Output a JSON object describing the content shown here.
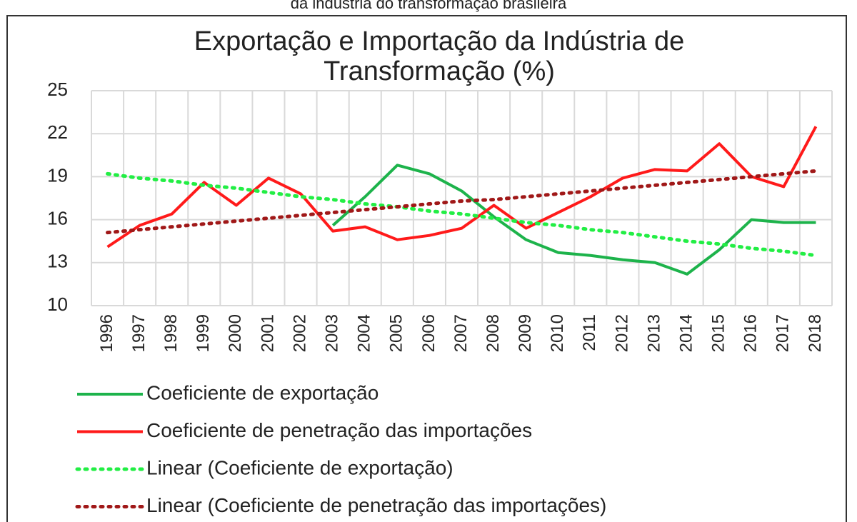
{
  "chart_data": {
    "type": "line",
    "caption": "da indústria do transformação brasileira",
    "title": [
      "Exportação e Importação da Indústria de",
      "Transformação (%)"
    ],
    "categories": [
      "1996",
      "1997",
      "1998",
      "1999",
      "2000",
      "2001",
      "2002",
      "2003",
      "2004",
      "2005",
      "2006",
      "2007",
      "2008",
      "2009",
      "2010",
      "2011",
      "2012",
      "2013",
      "2014",
      "2015",
      "2016",
      "2017",
      "2018"
    ],
    "ylim": [
      10,
      25
    ],
    "yticks": [
      10,
      13,
      16,
      19,
      22,
      25
    ],
    "grid": true,
    "legend": "bottom",
    "series": [
      {
        "name": "Coeficiente de exportação",
        "color": "#1db34b",
        "style": "solid",
        "values": [
          null,
          null,
          null,
          null,
          null,
          null,
          null,
          15.6,
          17.6,
          19.8,
          19.2,
          18.0,
          16.2,
          14.6,
          13.7,
          13.5,
          13.2,
          13.0,
          12.2,
          13.9,
          16.0,
          15.8,
          15.8
        ]
      },
      {
        "name": "Coeficiente de penetração das importações",
        "color": "#ff1a1a",
        "style": "solid",
        "values": [
          14.1,
          15.6,
          16.4,
          18.6,
          17.0,
          18.9,
          17.8,
          15.2,
          15.5,
          14.6,
          14.9,
          15.4,
          17.0,
          15.4,
          16.5,
          17.6,
          18.9,
          19.5,
          19.4,
          21.3,
          19.0,
          18.3,
          22.5
        ]
      },
      {
        "name": "Linear (Coeficiente de exportação)",
        "color": "#22ee44",
        "style": "dotted",
        "values": [
          19.2,
          18.9,
          18.7,
          18.4,
          18.2,
          17.9,
          17.6,
          17.4,
          17.1,
          16.9,
          16.6,
          16.4,
          16.1,
          15.8,
          15.6,
          15.3,
          15.1,
          14.8,
          14.5,
          14.3,
          14.0,
          13.8,
          13.5
        ]
      },
      {
        "name": "Linear (Coeficiente de penetração das importações)",
        "color": "#a01818",
        "style": "dotted",
        "values": [
          15.1,
          15.3,
          15.5,
          15.7,
          15.9,
          16.1,
          16.3,
          16.5,
          16.7,
          16.9,
          17.1,
          17.3,
          17.4,
          17.6,
          17.8,
          18.0,
          18.2,
          18.4,
          18.6,
          18.8,
          19.0,
          19.2,
          19.4
        ]
      }
    ]
  }
}
